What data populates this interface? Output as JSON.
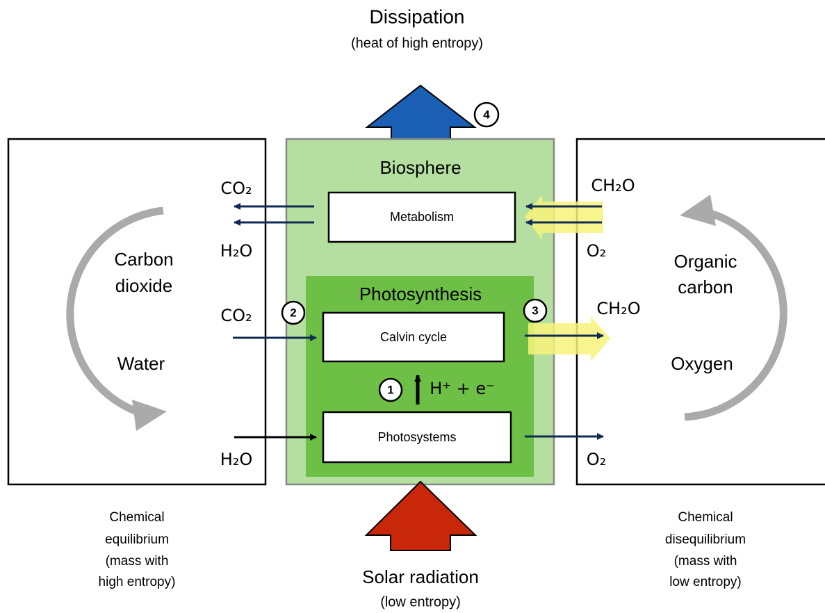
{
  "top": {
    "title": "Dissipation",
    "subtitle": "(heat of high entropy)",
    "badge": "4"
  },
  "bottom": {
    "title": "Solar radiation",
    "subtitle": "(low entropy)"
  },
  "left": {
    "upper_label": [
      "Carbon",
      "dioxide"
    ],
    "lower_label": "Water",
    "caption": [
      "Chemical",
      "equilibrium",
      "(mass with",
      "high entropy)"
    ],
    "flows": [
      "CO₂",
      "H₂O",
      "CO₂",
      "H₂O"
    ]
  },
  "right": {
    "upper_label": [
      "Organic",
      "carbon"
    ],
    "lower_label": "Oxygen",
    "caption": [
      "Chemical",
      "disequilibrium",
      "(mass with",
      "low entropy)"
    ],
    "flows": [
      "CH₂O",
      "O₂",
      "CH₂O",
      "O₂"
    ]
  },
  "center": {
    "title": "Biosphere",
    "metabolism": "Metabolism",
    "photosynthesis": "Photosynthesis",
    "calvin": "Calvin cycle",
    "photosystems": "Photosystems",
    "electrons": "H⁺ + e⁻",
    "badges": [
      "1",
      "2",
      "3"
    ]
  }
}
